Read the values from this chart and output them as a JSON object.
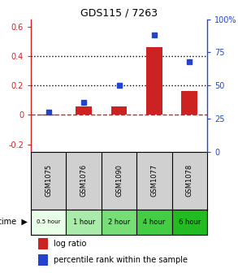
{
  "title": "GDS115 / 7263",
  "samples": [
    "GSM1075",
    "GSM1076",
    "GSM1090",
    "GSM1077",
    "GSM1078"
  ],
  "time_labels": [
    "0.5 hour",
    "1 hour",
    "2 hour",
    "4 hour",
    "6 hour"
  ],
  "time_colors": [
    "#e8ffe8",
    "#aaeaaa",
    "#77dd77",
    "#44cc44",
    "#22bb22"
  ],
  "log_ratio": [
    -0.005,
    0.055,
    0.055,
    0.46,
    0.16
  ],
  "percentile_pct": [
    30,
    37,
    50,
    88,
    68
  ],
  "ylim_left": [
    -0.25,
    0.65
  ],
  "yticks_left": [
    -0.2,
    0.0,
    0.2,
    0.4,
    0.6
  ],
  "ytick_labels_left": [
    "-0.2",
    "0",
    "0.2",
    "0.4",
    "0.6"
  ],
  "yticks_right": [
    0,
    25,
    50,
    75,
    100
  ],
  "ytick_labels_right": [
    "0",
    "25",
    "50",
    "75",
    "100%"
  ],
  "bar_color": "#cc2222",
  "dot_color": "#2244cc",
  "hline_dotted": [
    0.2,
    0.4
  ],
  "legend_log": "log ratio",
  "legend_pct": "percentile rank within the sample"
}
